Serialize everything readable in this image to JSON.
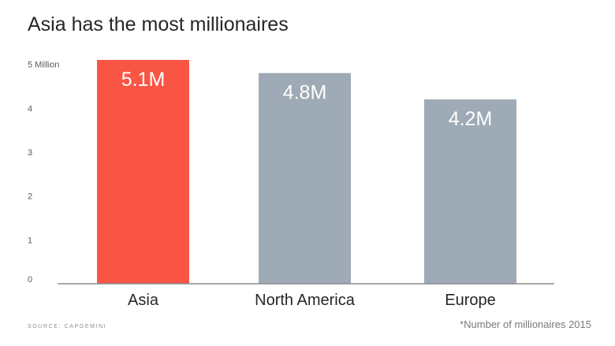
{
  "chart_data": {
    "type": "bar",
    "title": "Asia has the most millionaires",
    "categories": [
      "Asia",
      "North America",
      "Europe"
    ],
    "values": [
      5.1,
      4.8,
      4.2
    ],
    "data_labels": [
      "5.1M",
      "4.8M",
      "4.2M"
    ],
    "colors": [
      "#f95545",
      "#9eaab5",
      "#9eaab5"
    ],
    "ylim": [
      0,
      5.1
    ],
    "yticks": [
      0,
      1,
      2,
      3,
      4,
      5
    ],
    "ytick_labels": [
      "0",
      "1",
      "2",
      "3",
      "4",
      "5 Million"
    ],
    "grid": false,
    "xlabel": "",
    "ylabel": ""
  },
  "source": "SOURCE: CAPGEMINI",
  "footnote": "*Number of millionaires 2015"
}
